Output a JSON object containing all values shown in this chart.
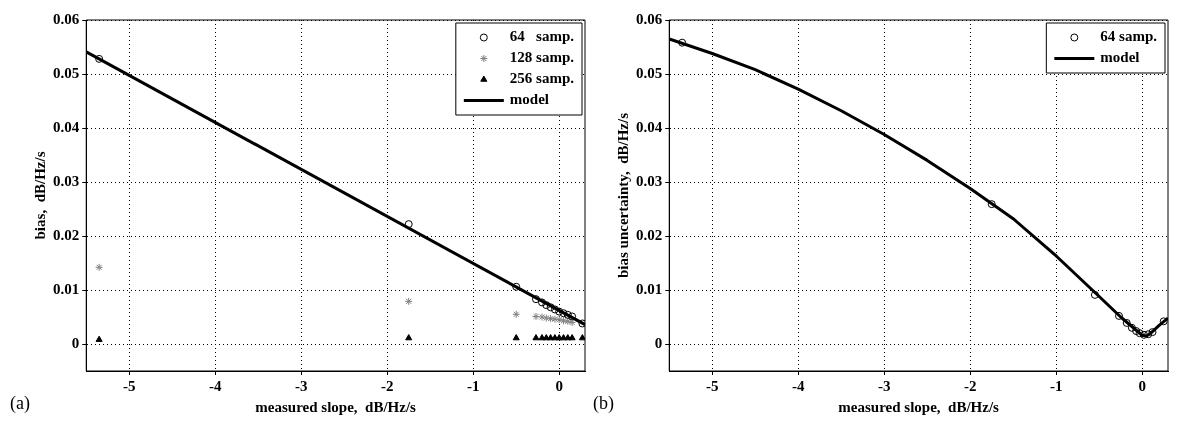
{
  "chart_data": [
    {
      "type": "scatter",
      "xlabel": "measured slope,  dB/Hz/s",
      "ylabel": "bias,  dB/Hz/s",
      "xlim": [
        -5.5,
        0.3
      ],
      "ylim": [
        -0.005,
        0.06
      ],
      "xticks": [
        -5,
        -4,
        -3,
        -2,
        -1,
        0
      ],
      "yticks": [
        0,
        0.01,
        0.02,
        0.03,
        0.04,
        0.05,
        0.06
      ],
      "grid": true,
      "legend": "top right",
      "annotations": [
        "(a)"
      ],
      "series": [
        {
          "name": "64   samp.",
          "type": "scatter",
          "marker": "circle",
          "color": "#000000",
          "x": [
            -5.35,
            -1.75,
            -0.5,
            -0.27,
            -0.2,
            -0.15,
            -0.1,
            -0.05,
            0,
            0.05,
            0.1,
            0.15,
            0.27
          ],
          "values": [
            0.0528,
            0.0222,
            0.0106,
            0.0083,
            0.0077,
            0.0072,
            0.0068,
            0.0064,
            0.006,
            0.0057,
            0.0054,
            0.0051,
            0.0038
          ]
        },
        {
          "name": "128 samp.",
          "type": "scatter",
          "marker": "cross",
          "color": "#808080",
          "x": [
            -5.35,
            -1.75,
            -0.5,
            -0.27,
            -0.2,
            -0.15,
            -0.1,
            -0.05,
            0,
            0.05,
            0.1,
            0.15
          ],
          "values": [
            0.0142,
            0.0079,
            0.0055,
            0.0051,
            0.005,
            0.0048,
            0.0047,
            0.0046,
            0.0045,
            0.0043,
            0.0042,
            0.004
          ]
        },
        {
          "name": "256 samp.",
          "type": "scatter",
          "marker": "triangle",
          "color": "#000000",
          "x": [
            -5.35,
            -1.75,
            -0.5,
            -0.27,
            -0.2,
            -0.15,
            -0.1,
            -0.05,
            0,
            0.05,
            0.1,
            0.15,
            0.27
          ],
          "values": [
            0.0008,
            0.0011,
            0.0011,
            0.0011,
            0.0011,
            0.0011,
            0.0011,
            0.0011,
            0.0011,
            0.0011,
            0.0011,
            0.0011,
            0.0011
          ]
        },
        {
          "name": "model",
          "type": "line",
          "marker": "none",
          "line_style": "solid",
          "color": "#000000",
          "x": [
            -5.5,
            0.3
          ],
          "values": [
            0.0541,
            0.0036
          ]
        }
      ]
    },
    {
      "type": "scatter",
      "xlabel": "measured slope,  dB/Hz/s",
      "ylabel": "bias uncertainty,  dB/Hz/s",
      "xlim": [
        -5.5,
        0.3
      ],
      "ylim": [
        -0.005,
        0.06
      ],
      "xticks": [
        -5,
        -4,
        -3,
        -2,
        -1,
        0
      ],
      "yticks": [
        0,
        0.01,
        0.02,
        0.03,
        0.04,
        0.05,
        0.06
      ],
      "grid": true,
      "legend": "top right",
      "annotations": [
        "(b)"
      ],
      "series": [
        {
          "name": "64 samp.",
          "type": "scatter",
          "marker": "circle",
          "color": "#000000",
          "x": [
            -5.35,
            -1.75,
            -0.55,
            -0.27,
            -0.18,
            -0.12,
            -0.07,
            -0.03,
            0.02,
            0.07,
            0.12,
            0.25
          ],
          "values": [
            0.0558,
            0.0259,
            0.0091,
            0.0052,
            0.0039,
            0.003,
            0.0024,
            0.002,
            0.0017,
            0.0018,
            0.0022,
            0.0042
          ]
        },
        {
          "name": "model",
          "type": "line",
          "marker": "none",
          "line_style": "solid",
          "color": "#000000",
          "x": [
            -5.5,
            -5,
            -4.5,
            -4,
            -3.5,
            -3,
            -2.5,
            -2,
            -1.5,
            -1,
            -0.5,
            -0.25,
            0,
            0.05,
            0.1,
            0.2,
            0.3
          ],
          "values": [
            0.0565,
            0.0538,
            0.0508,
            0.0472,
            0.0432,
            0.0388,
            0.034,
            0.0288,
            0.0232,
            0.0163,
            0.0088,
            0.005,
            0.0016,
            0.0015,
            0.002,
            0.0035,
            0.0048
          ]
        }
      ]
    }
  ]
}
